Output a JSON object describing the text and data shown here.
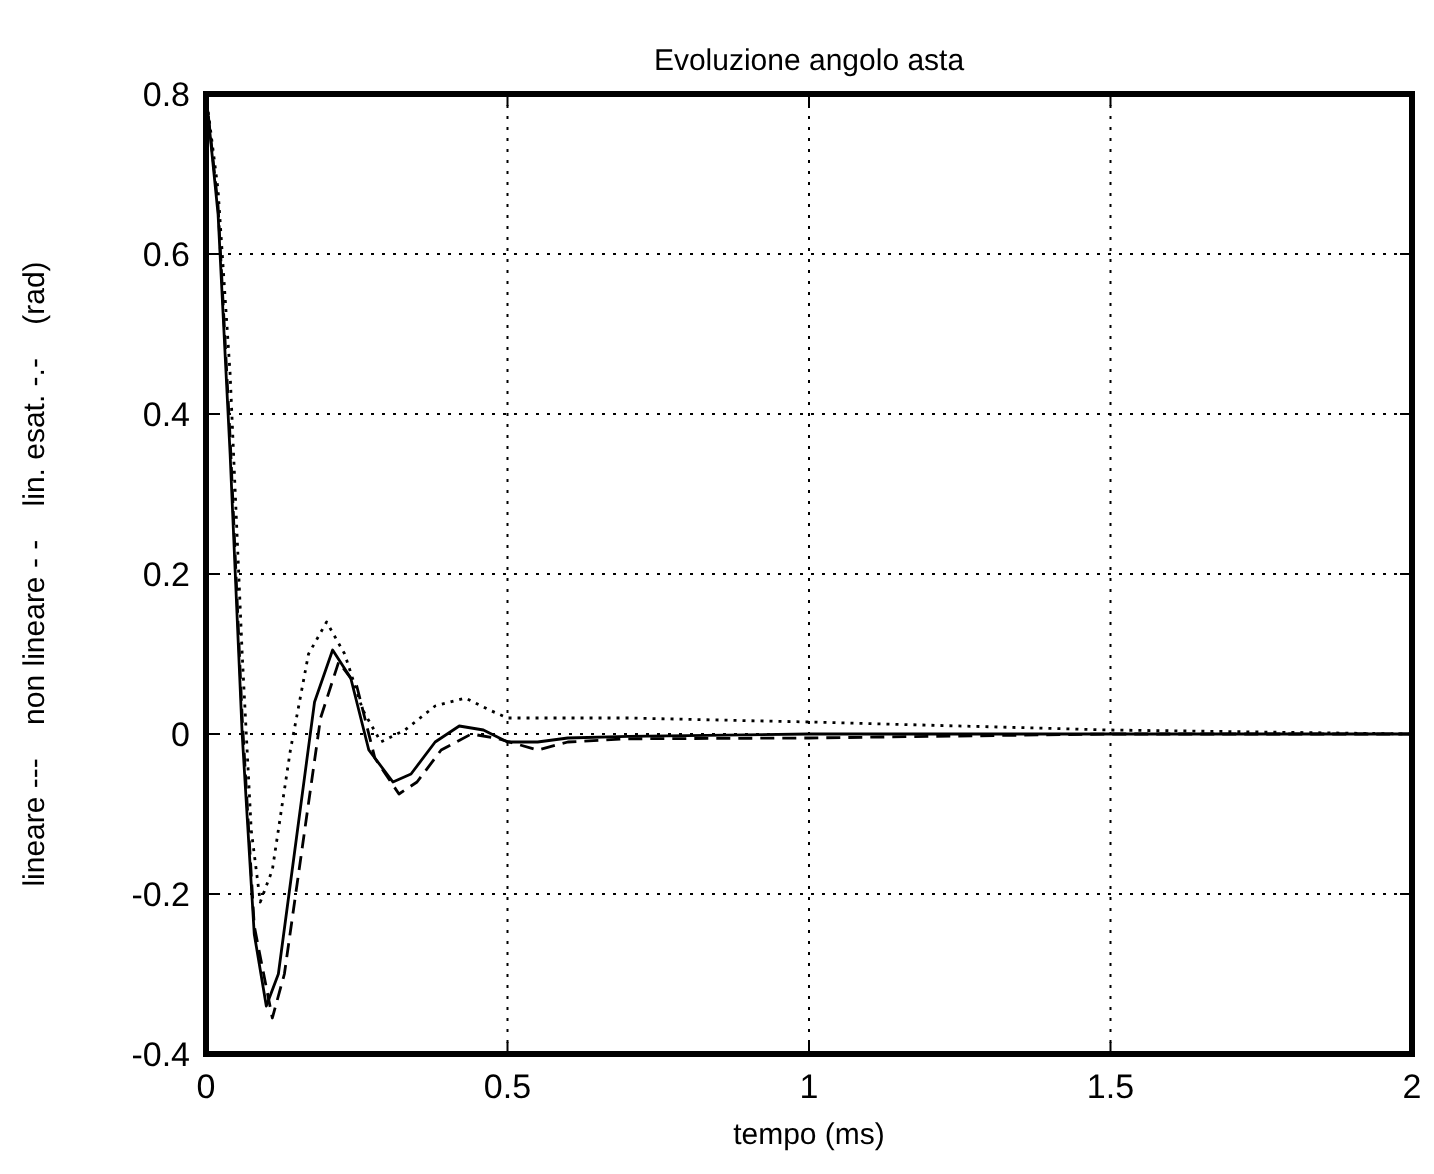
{
  "chart_data": {
    "type": "line",
    "title": "Evoluzione angolo asta",
    "xlabel": "tempo (ms)",
    "ylabel": "lineare ---    non lineare - -    lin. esat. -.-    (rad)",
    "xlim": [
      0,
      2
    ],
    "ylim": [
      -0.4,
      0.8
    ],
    "xticks": [
      0,
      0.5,
      1,
      1.5,
      2
    ],
    "yticks": [
      -0.4,
      -0.2,
      0,
      0.2,
      0.4,
      0.6,
      0.8
    ],
    "grid": true,
    "series": [
      {
        "color": "#000000",
        "line_style": "solid",
        "x": [
          0,
          0.02,
          0.04,
          0.06,
          0.08,
          0.1,
          0.12,
          0.15,
          0.18,
          0.21,
          0.24,
          0.27,
          0.31,
          0.34,
          0.38,
          0.42,
          0.46,
          0.5,
          0.55,
          0.6,
          0.7,
          1,
          1.5,
          2
        ],
        "values": [
          0.8,
          0.65,
          0.35,
          0,
          -0.25,
          -0.34,
          -0.3,
          -0.13,
          0.04,
          0.105,
          0.07,
          -0.02,
          -0.06,
          -0.05,
          -0.01,
          0.01,
          0.005,
          -0.01,
          -0.01,
          -0.005,
          -0.003,
          0,
          0,
          0
        ]
      },
      {
        "color": "#000000",
        "line_style": "dashed",
        "x": [
          0,
          0.02,
          0.04,
          0.06,
          0.08,
          0.11,
          0.13,
          0.16,
          0.19,
          0.22,
          0.25,
          0.28,
          0.32,
          0.35,
          0.39,
          0.44,
          0.48,
          0.55,
          0.6,
          0.7,
          1,
          1.5,
          2
        ],
        "values": [
          0.8,
          0.66,
          0.37,
          0.02,
          -0.24,
          -0.355,
          -0.3,
          -0.14,
          0.02,
          0.09,
          0.06,
          -0.03,
          -0.075,
          -0.06,
          -0.02,
          0,
          -0.005,
          -0.02,
          -0.01,
          -0.006,
          -0.005,
          0,
          0
        ]
      },
      {
        "color": "#000000",
        "line_style": "dotted",
        "x": [
          0,
          0.02,
          0.04,
          0.06,
          0.075,
          0.09,
          0.11,
          0.14,
          0.17,
          0.2,
          0.23,
          0.26,
          0.29,
          0.33,
          0.38,
          0.43,
          0.47,
          0.5,
          0.7,
          1,
          1.5,
          2
        ],
        "values": [
          0.8,
          0.68,
          0.45,
          0.1,
          -0.12,
          -0.21,
          -0.17,
          -0.02,
          0.1,
          0.14,
          0.1,
          0.03,
          -0.01,
          0.005,
          0.035,
          0.045,
          0.03,
          0.02,
          0.02,
          0.015,
          0.005,
          0
        ]
      }
    ]
  }
}
